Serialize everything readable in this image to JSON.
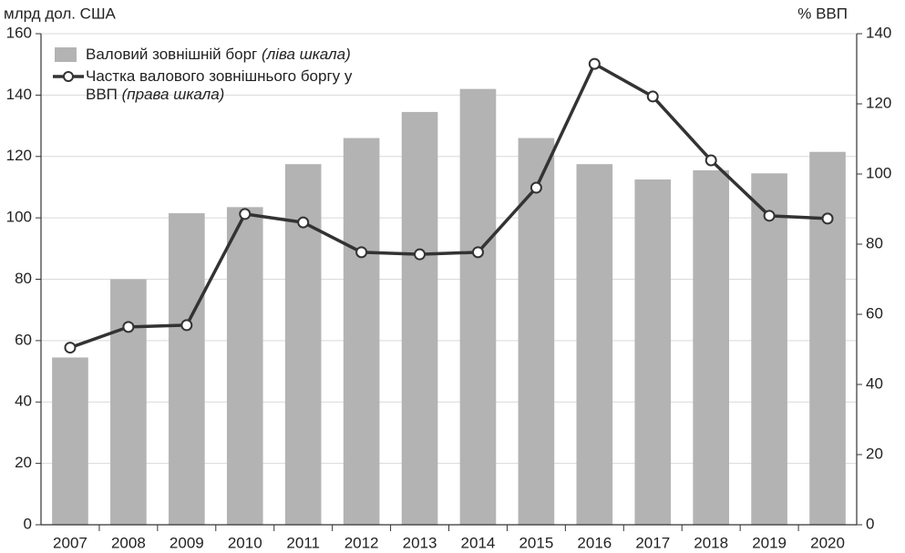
{
  "chart_data": {
    "type": "bar-line",
    "y_label": "млрд дол. США",
    "y2_label": "% ВВП",
    "categories": [
      "2007",
      "2008",
      "2009",
      "2010",
      "2011",
      "2012",
      "2013",
      "2014",
      "2015",
      "2016",
      "2017",
      "2018",
      "2019",
      "2020"
    ],
    "series": [
      {
        "name": "Валовий зовнішній борг (ліва шкала)",
        "type": "bar",
        "color": "#b3b3b3",
        "values": [
          54.5,
          80,
          101.5,
          103.5,
          117.5,
          126,
          134.5,
          142,
          126,
          117.5,
          112.5,
          115.5,
          114.5,
          121.5
        ]
      },
      {
        "name": "Частка валового зовнішнього боргу у ВВП (права шкала)",
        "type": "line",
        "axis": "y2",
        "color": "#333333",
        "values": [
          50.5,
          56.4,
          56.9,
          88.6,
          86.2,
          77.7,
          77.1,
          77.7,
          96.1,
          131.4,
          122.1,
          103.9,
          88.1,
          87.3
        ]
      }
    ],
    "ylim": [
      0,
      160
    ],
    "yticks": [
      0,
      20,
      40,
      60,
      80,
      100,
      120,
      140,
      160
    ],
    "y2lim": [
      0,
      140
    ],
    "y2ticks": [
      0,
      20,
      40,
      60,
      80,
      100,
      120,
      140
    ],
    "grid": true
  }
}
